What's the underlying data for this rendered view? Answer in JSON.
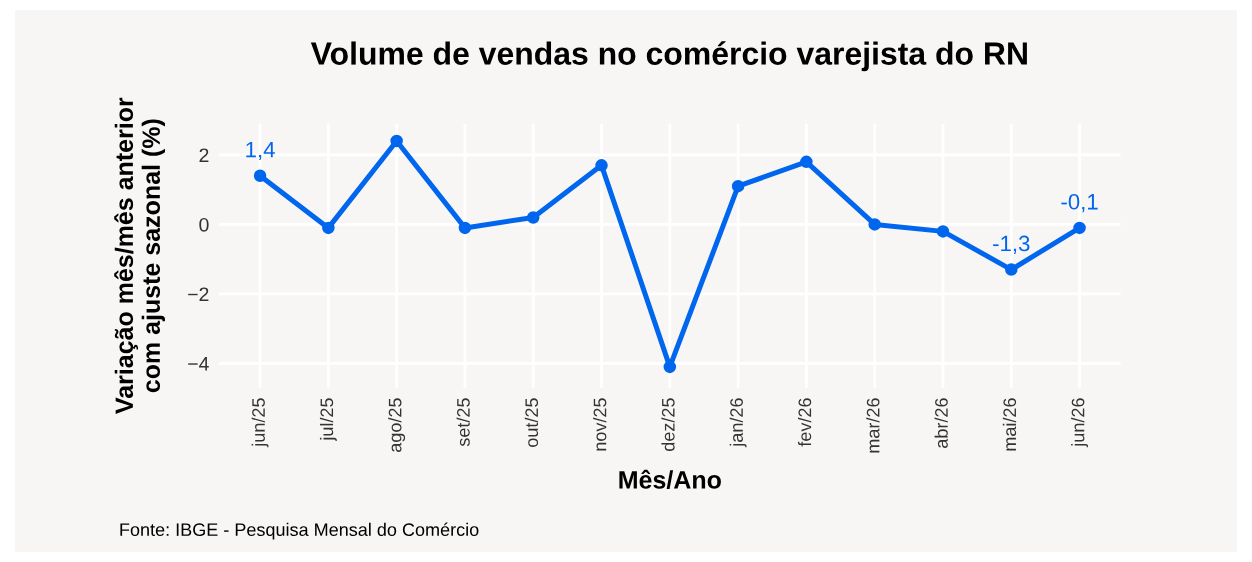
{
  "chart_data": {
    "type": "line",
    "title": "Volume de vendas no comércio varejista do RN",
    "xlabel": "Mês/Ano",
    "ylabel": "Variação mês/mês anterior\ncom ajuste sazonal (%)",
    "annotations": [
      "Fonte: IBGE - Pesquisa Mensal do Comércio"
    ],
    "categories": [
      "jun/25",
      "jul/25",
      "ago/25",
      "set/25",
      "out/25",
      "nov/25",
      "dez/25",
      "jan/26",
      "fev/26",
      "mar/26",
      "abr/26",
      "mai/26",
      "jun/26"
    ],
    "series": [
      {
        "color": "#0066ee",
        "values": [
          1.4,
          -0.1,
          2.4,
          -0.1,
          0.2,
          1.7,
          -4.1,
          1.1,
          1.8,
          0.0,
          -0.2,
          -1.3,
          -0.1
        ],
        "value_labels": [
          "1,4",
          null,
          null,
          null,
          null,
          null,
          null,
          null,
          null,
          null,
          null,
          "-1,3",
          "-0,1"
        ]
      }
    ],
    "ylim": [
      -4.7,
      2.9
    ],
    "yticks": [
      {
        "value": -4,
        "label": "−4"
      },
      {
        "value": -2,
        "label": "−2"
      },
      0,
      2
    ],
    "grid": true,
    "marker": "circle",
    "line_style": "solid"
  }
}
